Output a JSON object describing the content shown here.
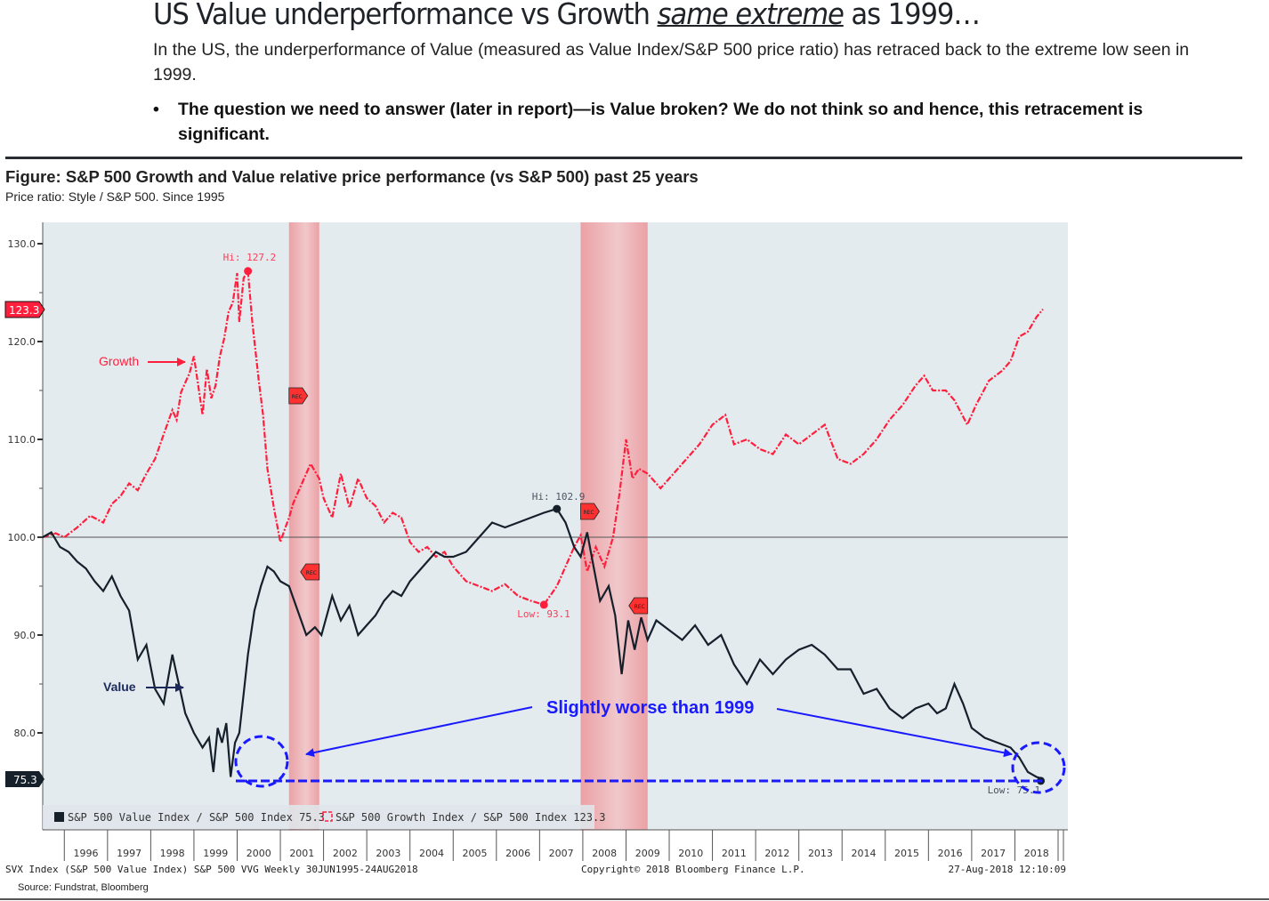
{
  "header": {
    "title_parts": [
      "US Value underperformance vs Growth ",
      "same extreme",
      " as 1999…"
    ],
    "intro": "In the US, the underperformance of Value (measured as Value Index/S&P 500 price ratio) has retraced back to the extreme low seen in 1999.",
    "bullet_symbol": "•",
    "bullet": "The question we need to answer (later in report)—is Value broken? We do not think so and hence, this retracement is significant."
  },
  "figure": {
    "title": "Figure: S&P 500 Growth and Value relative price performance (vs S&P 500) past 25 years",
    "subtitle": "Price ratio: Style / S&P 500.  Since 1995",
    "footer_left": "SVX Index (S&P 500 Value Index) S&P 500 VVG  Weekly 30JUN1995-24AUG2018",
    "footer_center": "Copyright© 2018 Bloomberg Finance L.P.",
    "footer_right": "27-Aug-2018 12:10:09",
    "source": "Source: Fundstrat, Bloomberg"
  },
  "colors": {
    "growth": "#ff1f3d",
    "value": "#15202b",
    "annotation": "#1a1aff",
    "recession": "#e88a8e",
    "plot_bg": "#e4ebef",
    "value_arrow_label": "#1b2a5a"
  },
  "chart_data": {
    "type": "line",
    "title": "S&P 500 Growth and Value relative price performance (vs S&P 500) past 25 years",
    "xlabel": "",
    "ylabel": "Price ratio: Style / S&P 500",
    "xlim": [
      1995.5,
      2018.65
    ],
    "ylim": [
      72,
      132
    ],
    "yticks": [
      80,
      90,
      100,
      110,
      120,
      130
    ],
    "ytick_labels": [
      "80.0",
      "90.0",
      "100.0",
      "110.0",
      "120.0",
      "130.0"
    ],
    "xtick_labels": [
      "1996",
      "1997",
      "1998",
      "1999",
      "2000",
      "2001",
      "2002",
      "2003",
      "2004",
      "2005",
      "2006",
      "2007",
      "2008",
      "2009",
      "2010",
      "2011",
      "2012",
      "2013",
      "2014",
      "2015",
      "2016",
      "2017",
      "2018"
    ],
    "reference_line": 100,
    "grid": false,
    "legend_position": "bottom-left",
    "recessions": [
      {
        "start": 2001.2,
        "end": 2001.9,
        "label": "REC"
      },
      {
        "start": 2007.95,
        "end": 2009.5,
        "label": "REC"
      }
    ],
    "series": [
      {
        "name": "S&P 500 Growth Index / S&P 500 Index",
        "last_value": 123.3,
        "style": "dash-dot",
        "x": [
          1995.5,
          1995.8,
          1996.0,
          1996.3,
          1996.6,
          1996.9,
          1997.1,
          1997.3,
          1997.5,
          1997.7,
          1997.9,
          1998.1,
          1998.3,
          1998.5,
          1998.6,
          1998.7,
          1998.8,
          1998.9,
          1999.0,
          1999.2,
          1999.3,
          1999.4,
          1999.5,
          1999.6,
          1999.7,
          1999.8,
          1999.9,
          2000.0,
          2000.05,
          2000.15,
          2000.25,
          2000.35,
          2000.5,
          2000.6,
          2000.7,
          2000.85,
          2001.0,
          2001.1,
          2001.2,
          2001.3,
          2001.5,
          2001.7,
          2001.9,
          2002.0,
          2002.2,
          2002.4,
          2002.6,
          2002.8,
          2003.0,
          2003.2,
          2003.4,
          2003.6,
          2003.8,
          2004.0,
          2004.2,
          2004.4,
          2004.6,
          2004.8,
          2005.0,
          2005.3,
          2005.6,
          2005.9,
          2006.2,
          2006.5,
          2006.8,
          2007.1,
          2007.4,
          2007.6,
          2007.8,
          2007.95,
          2008.1,
          2008.3,
          2008.5,
          2008.7,
          2008.85,
          2009.0,
          2009.15,
          2009.3,
          2009.5,
          2009.8,
          2010.1,
          2010.4,
          2010.7,
          2011.0,
          2011.3,
          2011.5,
          2011.8,
          2012.1,
          2012.4,
          2012.7,
          2013.0,
          2013.3,
          2013.6,
          2013.9,
          2014.2,
          2014.5,
          2014.8,
          2015.1,
          2015.4,
          2015.7,
          2015.9,
          2016.1,
          2016.4,
          2016.6,
          2016.9,
          2017.1,
          2017.4,
          2017.7,
          2017.9,
          2018.1,
          2018.3,
          2018.5,
          2018.65
        ],
        "values": [
          100.0,
          100.4,
          100.0,
          101.0,
          102.2,
          101.5,
          103.4,
          104.2,
          105.5,
          104.8,
          106.5,
          108.0,
          110.5,
          113.0,
          112.0,
          114.8,
          115.8,
          116.8,
          118.5,
          112.5,
          117.2,
          114.2,
          115.5,
          118.5,
          120.3,
          123.0,
          124.0,
          127.0,
          122.0,
          126.5,
          127.2,
          122.0,
          116.0,
          112.5,
          107.0,
          103.0,
          99.5,
          100.8,
          102.0,
          103.5,
          105.5,
          107.5,
          106.0,
          104.0,
          102.0,
          106.5,
          103.0,
          106.0,
          104.0,
          103.2,
          101.5,
          102.5,
          102.0,
          99.5,
          98.5,
          99.0,
          98.0,
          98.5,
          97.0,
          95.5,
          95.0,
          94.5,
          95.2,
          94.0,
          93.5,
          93.1,
          95.0,
          97.0,
          99.0,
          100.2,
          96.5,
          99.0,
          97.0,
          100.0,
          104.5,
          110.0,
          106.0,
          107.0,
          106.5,
          105.0,
          106.5,
          108.0,
          109.5,
          111.5,
          112.5,
          109.5,
          110.0,
          109.0,
          108.5,
          110.5,
          109.5,
          110.5,
          111.5,
          108.0,
          107.5,
          108.5,
          110.0,
          112.0,
          113.5,
          115.5,
          116.5,
          115.0,
          115.0,
          114.0,
          111.5,
          113.5,
          116.0,
          117.0,
          118.0,
          120.5,
          121.0,
          122.5,
          123.3
        ]
      },
      {
        "name": "S&P 500 Value Index / S&P 500 Index",
        "last_value": 75.3,
        "style": "solid",
        "x": [
          1995.5,
          1995.7,
          1995.9,
          1996.1,
          1996.3,
          1996.5,
          1996.7,
          1996.9,
          1997.1,
          1997.3,
          1997.5,
          1997.7,
          1997.9,
          1998.1,
          1998.3,
          1998.5,
          1998.6,
          1998.7,
          1998.8,
          1999.0,
          1999.2,
          1999.35,
          1999.45,
          1999.55,
          1999.65,
          1999.75,
          1999.85,
          1999.95,
          2000.05,
          2000.15,
          2000.25,
          2000.4,
          2000.55,
          2000.7,
          2000.85,
          2001.0,
          2001.2,
          2001.4,
          2001.6,
          2001.8,
          2001.95,
          2002.2,
          2002.4,
          2002.6,
          2002.8,
          2003.0,
          2003.2,
          2003.4,
          2003.6,
          2003.8,
          2004.0,
          2004.2,
          2004.4,
          2004.6,
          2004.8,
          2005.0,
          2005.3,
          2005.6,
          2005.9,
          2006.2,
          2006.5,
          2006.8,
          2007.1,
          2007.4,
          2007.6,
          2007.8,
          2007.95,
          2008.1,
          2008.25,
          2008.4,
          2008.6,
          2008.75,
          2008.9,
          2009.05,
          2009.2,
          2009.35,
          2009.5,
          2009.7,
          2010.0,
          2010.3,
          2010.6,
          2010.9,
          2011.2,
          2011.5,
          2011.8,
          2012.1,
          2012.4,
          2012.7,
          2013.0,
          2013.3,
          2013.6,
          2013.9,
          2014.2,
          2014.5,
          2014.8,
          2015.1,
          2015.4,
          2015.7,
          2016.0,
          2016.2,
          2016.4,
          2016.6,
          2016.8,
          2017.0,
          2017.3,
          2017.6,
          2017.9,
          2018.1,
          2018.3,
          2018.5,
          2018.65
        ],
        "values": [
          100.0,
          100.5,
          99.0,
          98.5,
          97.5,
          96.8,
          95.5,
          94.5,
          96.0,
          94.0,
          92.5,
          87.5,
          89.0,
          84.5,
          83.0,
          88.0,
          86.0,
          84.0,
          82.0,
          80.0,
          78.5,
          79.5,
          76.0,
          80.5,
          79.0,
          81.0,
          75.5,
          79.0,
          80.0,
          84.0,
          88.0,
          92.5,
          95.0,
          97.0,
          96.5,
          95.5,
          95.0,
          92.5,
          90.0,
          90.8,
          90.0,
          94.0,
          91.5,
          93.0,
          90.0,
          91.0,
          92.0,
          93.5,
          94.5,
          94.0,
          95.5,
          96.5,
          97.5,
          98.5,
          98.0,
          98.0,
          98.5,
          100.0,
          101.5,
          101.0,
          101.5,
          102.0,
          102.5,
          102.9,
          101.5,
          99.0,
          98.0,
          100.5,
          97.0,
          93.5,
          95.0,
          92.0,
          86.0,
          91.5,
          88.5,
          91.8,
          89.5,
          91.5,
          90.5,
          89.5,
          91.0,
          89.0,
          90.0,
          87.0,
          85.0,
          87.5,
          86.0,
          87.5,
          88.5,
          89.0,
          88.0,
          86.5,
          86.5,
          84.0,
          84.5,
          82.5,
          81.5,
          82.5,
          83.0,
          82.0,
          82.5,
          85.0,
          83.0,
          80.5,
          79.5,
          79.0,
          78.5,
          77.5,
          76.0,
          75.5,
          75.3
        ]
      }
    ],
    "annotations": [
      {
        "text": "Hi: 127.2",
        "series": "growth",
        "x": 2000.25,
        "y": 127.2
      },
      {
        "text": "Low: 93.1",
        "series": "growth",
        "x": 2007.1,
        "y": 93.1
      },
      {
        "text": "Hi: 102.9",
        "series": "value",
        "x": 2007.4,
        "y": 102.9
      },
      {
        "text": "Low: 75.1",
        "series": "value",
        "x": 2018.6,
        "y": 75.1
      },
      {
        "text": "Growth",
        "arrow_to": "growth"
      },
      {
        "text": "Value",
        "arrow_to": "value"
      },
      {
        "text": "Slightly worse than 1999"
      }
    ],
    "last_value_badges": [
      {
        "value": "123.3",
        "series": "growth"
      },
      {
        "value": "75.3",
        "series": "value"
      }
    ],
    "legend": [
      {
        "label": "S&P 500 Value Index / S&P 500 Index 75.3",
        "series": "value"
      },
      {
        "label": "S&P 500 Growth Index / S&P 500 Index 123.3",
        "series": "growth"
      }
    ]
  }
}
